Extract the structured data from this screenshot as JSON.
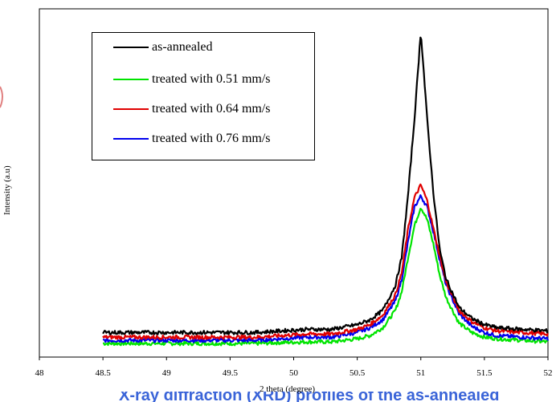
{
  "chart_data": {
    "type": "line",
    "title": "",
    "xlabel": "2 theta (degree)",
    "ylabel": "Intensity (a.u)",
    "xlim": [
      48,
      52
    ],
    "ylim": [
      0,
      100
    ],
    "yticks_shown": false,
    "xticks": [
      "48",
      "48.5",
      "49",
      "49.5",
      "50",
      "50.5",
      "51",
      "51.5",
      "52"
    ],
    "grid": false,
    "legend_position": "top-left",
    "series": [
      {
        "name": "as-annealed",
        "color": "#000000",
        "x": [
          48.5,
          48.7,
          48.9,
          49.1,
          49.3,
          49.5,
          49.7,
          49.9,
          50.1,
          50.3,
          50.5,
          50.6,
          50.7,
          50.8,
          50.85,
          50.9,
          50.95,
          51.0,
          51.05,
          51.1,
          51.15,
          51.2,
          51.3,
          51.4,
          51.5,
          51.6,
          51.8,
          52.0
        ],
        "y": [
          4,
          4,
          4,
          4,
          4,
          4,
          4,
          4.5,
          5,
          5,
          6.5,
          8,
          11,
          19,
          28,
          48,
          72,
          100,
          72,
          48,
          30,
          21,
          12,
          8.5,
          6.5,
          5.5,
          5,
          4.5
        ]
      },
      {
        "name": "treated with 0.51 mm/s",
        "color": "#00e400",
        "x": [
          48.5,
          48.7,
          48.9,
          49.1,
          49.3,
          49.5,
          49.7,
          49.9,
          50.1,
          50.3,
          50.5,
          50.6,
          50.7,
          50.8,
          50.85,
          50.9,
          50.95,
          51.0,
          51.05,
          51.1,
          51.15,
          51.2,
          51.3,
          51.4,
          51.5,
          51.6,
          51.8,
          52.0
        ],
        "y": [
          0.5,
          0.5,
          0.5,
          0.5,
          0.5,
          0.5,
          0.5,
          0.8,
          1,
          1,
          2,
          3,
          5.5,
          11,
          17,
          28,
          38,
          44,
          40,
          32,
          22,
          15,
          7,
          4,
          2.5,
          2,
          1.5,
          1
        ]
      },
      {
        "name": "treated with 0.64 mm/s",
        "color": "#e00000",
        "x": [
          48.5,
          48.7,
          48.9,
          49.1,
          49.3,
          49.5,
          49.7,
          49.9,
          50.1,
          50.3,
          50.5,
          50.6,
          50.7,
          50.8,
          50.85,
          50.9,
          50.95,
          51.0,
          51.05,
          51.1,
          51.15,
          51.2,
          51.3,
          51.4,
          51.5,
          51.6,
          51.8,
          52.0
        ],
        "y": [
          2.5,
          2.5,
          2.5,
          2.5,
          2.5,
          2.5,
          2.5,
          3,
          3.5,
          3.5,
          5,
          6.5,
          9.5,
          16,
          23,
          37,
          47,
          51,
          46,
          37,
          28,
          20,
          11,
          7.5,
          5.5,
          4.5,
          4,
          3.5
        ]
      },
      {
        "name": "treated with 0.76 mm/s",
        "color": "#0000ee",
        "x": [
          48.5,
          48.7,
          48.9,
          49.1,
          49.3,
          49.5,
          49.7,
          49.9,
          50.1,
          50.3,
          50.5,
          50.6,
          50.7,
          50.8,
          50.85,
          50.9,
          50.95,
          51.0,
          51.05,
          51.1,
          51.15,
          51.2,
          51.3,
          51.4,
          51.5,
          51.6,
          51.8,
          52.0
        ],
        "y": [
          1.5,
          1.5,
          1.5,
          1.5,
          1.5,
          1.5,
          1.5,
          2,
          2.5,
          2.5,
          4,
          5.5,
          8,
          14,
          21,
          33,
          44,
          47.5,
          44,
          36,
          27,
          19,
          10,
          6,
          4,
          3,
          2.5,
          2
        ]
      }
    ]
  },
  "caption": {
    "text": "X-ray diffraction (XRD) profiles of the as-annealed"
  }
}
